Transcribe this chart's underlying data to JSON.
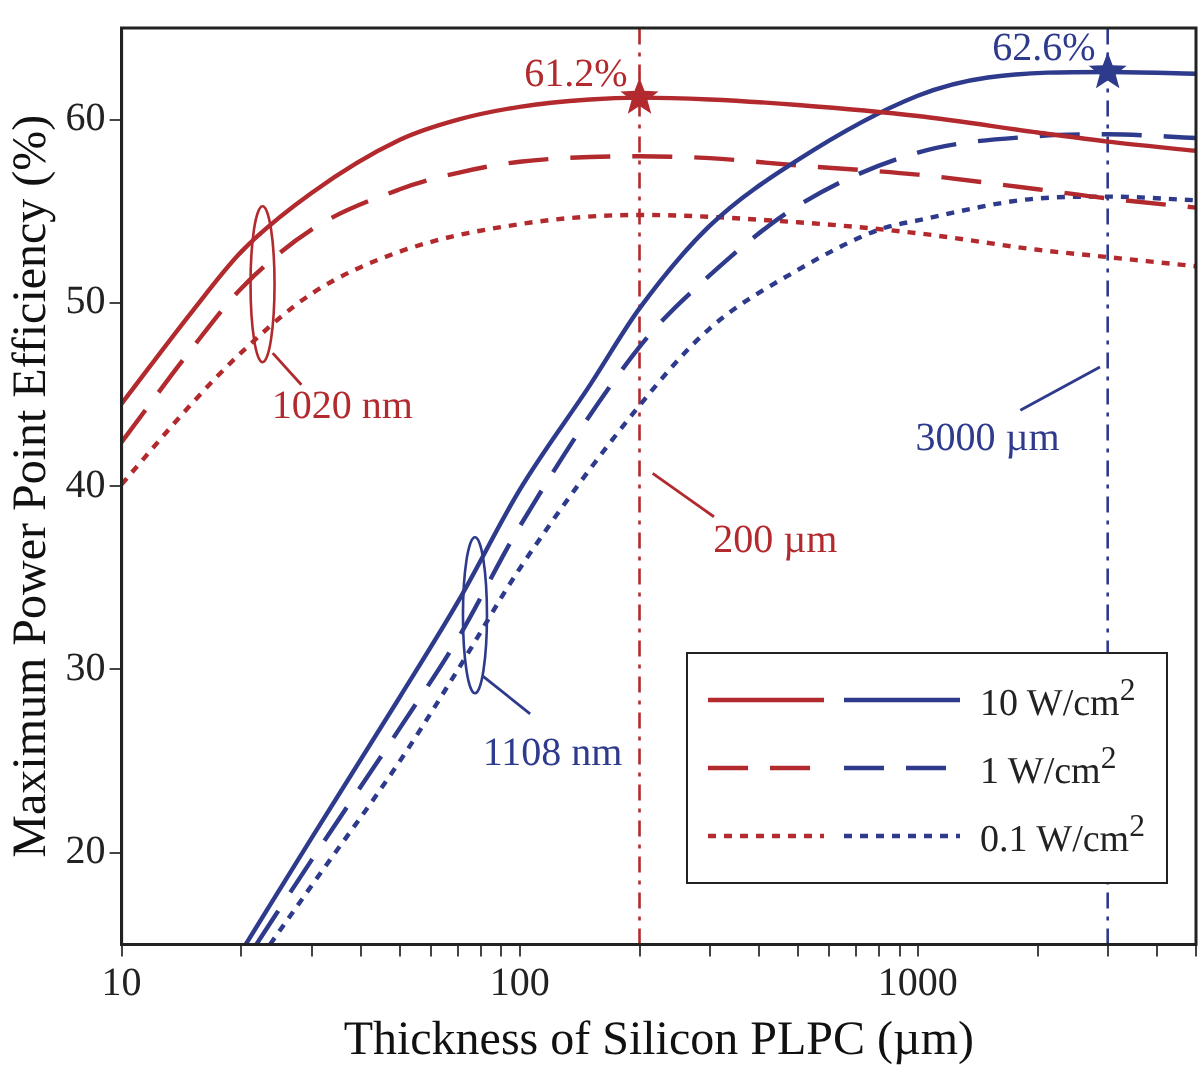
{
  "chart_data": {
    "type": "line",
    "xlabel": "Thickness of Silicon PLPC (µm)",
    "ylabel": "Maximum Power Point Efficiency (%)",
    "log": "x",
    "xlim": [
      10,
      5000
    ],
    "ylim": [
      15,
      65
    ],
    "xticks": [
      10,
      {
        "value": 20,
        "label": null
      },
      {
        "value": 30,
        "label": null
      },
      {
        "value": 40,
        "label": null
      },
      {
        "value": 50,
        "label": null
      },
      {
        "value": 60,
        "label": null
      },
      {
        "value": 70,
        "label": null
      },
      {
        "value": 80,
        "label": null
      },
      {
        "value": 90,
        "label": null
      },
      100,
      {
        "value": 200,
        "label": null
      },
      {
        "value": 300,
        "label": null
      },
      {
        "value": 400,
        "label": null
      },
      {
        "value": 500,
        "label": null
      },
      {
        "value": 600,
        "label": null
      },
      {
        "value": 700,
        "label": null
      },
      {
        "value": 800,
        "label": null
      },
      {
        "value": 900,
        "label": null
      },
      1000,
      {
        "value": 2000,
        "label": null
      },
      {
        "value": 3000,
        "label": null
      },
      {
        "value": 4000,
        "label": null
      },
      {
        "value": 5000,
        "label": null
      }
    ],
    "yticks": [
      20,
      30,
      40,
      50,
      60
    ],
    "grid": false,
    "legend": "bottom right",
    "series": [
      {
        "color": "#b22a2e",
        "line_style": "solid",
        "x": [
          10,
          15,
          20,
          30,
          50,
          70,
          100,
          150,
          200,
          300,
          500,
          1000,
          2000,
          3000,
          5000
        ],
        "values": [
          44.5,
          49.5,
          52.8,
          56,
          58.9,
          60,
          60.7,
          61.1,
          61.2,
          61.1,
          60.8,
          60.2,
          59.3,
          58.8,
          58.3
        ]
      },
      {
        "name": "10 W/cm$^{2}$",
        "color": "#2e3a8c",
        "line_style": "solid",
        "x": [
          20.5,
          30,
          50,
          70,
          100,
          150,
          200,
          300,
          500,
          1000,
          1500,
          3000,
          5000
        ],
        "values": [
          15,
          20.8,
          28.5,
          33.7,
          39.8,
          45.5,
          49.7,
          54.2,
          57.8,
          61.3,
          62.3,
          62.6,
          62.5
        ]
      },
      {
        "color": "#b22a2e",
        "line_style": "dashed",
        "x": [
          10,
          15,
          20,
          30,
          50,
          70,
          100,
          200,
          300,
          500,
          1000,
          2000,
          3000,
          5000
        ],
        "values": [
          42.4,
          47.5,
          50.8,
          54,
          56.2,
          57.1,
          57.7,
          58,
          57.9,
          57.5,
          57,
          56.2,
          55.7,
          55.2
        ]
      },
      {
        "name": "1 W/cm$^{2}$",
        "color": "#2e3a8c",
        "line_style": "dashed",
        "x": [
          21.8,
          30,
          50,
          70,
          100,
          200,
          300,
          500,
          1000,
          2000,
          3000,
          5000
        ],
        "values": [
          15,
          19.6,
          26.8,
          31.7,
          37.8,
          47.6,
          51.5,
          55.3,
          58.2,
          59.1,
          59.2,
          59
        ]
      },
      {
        "color": "#b22a2e",
        "line_style": "dotted",
        "x": [
          10,
          15,
          20,
          30,
          50,
          100,
          200,
          500,
          1000,
          2000,
          3000,
          5000
        ],
        "values": [
          40.1,
          44.5,
          47.3,
          50.5,
          52.8,
          54.3,
          54.8,
          54.4,
          53.8,
          52.9,
          52.5,
          52
        ]
      },
      {
        "name": "0.1 W/cm$^{2}$",
        "color": "#2e3a8c",
        "line_style": "dotted",
        "x": [
          23.6,
          30,
          50,
          70,
          100,
          200,
          300,
          500,
          800,
          1000,
          2000,
          3000,
          5000
        ],
        "values": [
          15,
          18.2,
          25,
          30,
          35.5,
          44.4,
          48.6,
          51.8,
          54,
          54.5,
          55.7,
          55.8,
          55.6
        ]
      },
      {
        "type": "scatter",
        "marker": "star",
        "color": "#b22a2e",
        "x": [
          200
        ],
        "values": [
          61.2
        ],
        "value_labels": [
          "61.2%"
        ]
      },
      {
        "type": "scatter",
        "marker": "star",
        "color": "#2e3a8c",
        "x": [
          3000
        ],
        "values": [
          62.6
        ],
        "value_labels": [
          "62.6%"
        ]
      }
    ],
    "ref_lines": [
      {
        "axis": "x",
        "value": 200,
        "color": "#b22a2e",
        "line_style": "dashdot"
      },
      {
        "axis": "x",
        "value": 3000,
        "color": "#2e3a8c",
        "line_style": "dashdot"
      }
    ],
    "annotations": [
      "1020 nm",
      "1108 nm",
      "200 µm",
      "3000 µm"
    ]
  }
}
